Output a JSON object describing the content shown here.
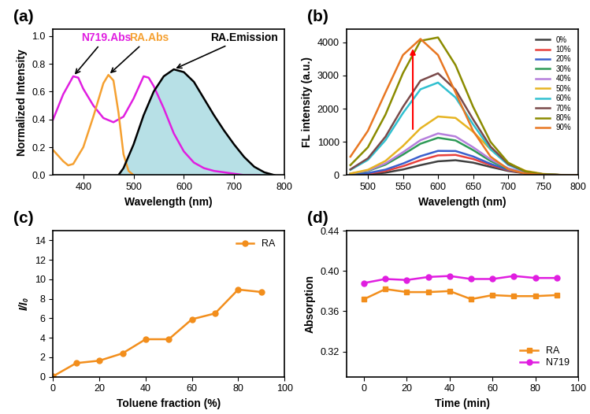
{
  "chart_data": [
    {
      "type": "line",
      "panel": "(a)",
      "x_label": "Wavelength (nm)",
      "y_label": "Normalized Intensity",
      "xlim": [
        340,
        800
      ],
      "xticks": [
        400,
        500,
        600,
        700,
        800
      ],
      "ylim": [
        0,
        1.05
      ],
      "yticks": [
        0.0,
        0.2,
        0.4,
        0.6,
        0.8,
        1.0
      ],
      "series": [
        {
          "name": "N719.Abs",
          "color": "#e01ee0",
          "line_style": "solid",
          "x": [
            340,
            360,
            380,
            390,
            400,
            420,
            440,
            460,
            480,
            500,
            520,
            530,
            540,
            560,
            580,
            600,
            620,
            640,
            660,
            680,
            700,
            720,
            750
          ],
          "values": [
            0.4,
            0.58,
            0.71,
            0.7,
            0.62,
            0.5,
            0.41,
            0.38,
            0.42,
            0.55,
            0.71,
            0.7,
            0.64,
            0.48,
            0.3,
            0.17,
            0.09,
            0.05,
            0.03,
            0.02,
            0.01,
            0.0,
            0.0
          ]
        },
        {
          "name": "RA.Abs",
          "color": "#f5a030",
          "line_style": "solid",
          "x": [
            340,
            360,
            370,
            380,
            400,
            420,
            440,
            450,
            460,
            470,
            480,
            490,
            500
          ],
          "values": [
            0.18,
            0.1,
            0.07,
            0.08,
            0.2,
            0.42,
            0.66,
            0.72,
            0.68,
            0.45,
            0.15,
            0.03,
            0.0
          ]
        },
        {
          "name": "RA.Emission",
          "color": "#000000",
          "type": "area",
          "line_style": "solid",
          "x": [
            470,
            480,
            500,
            520,
            540,
            560,
            580,
            600,
            620,
            640,
            660,
            680,
            700,
            720,
            740,
            760,
            780
          ],
          "values": [
            0.0,
            0.05,
            0.22,
            0.43,
            0.6,
            0.71,
            0.76,
            0.74,
            0.67,
            0.55,
            0.43,
            0.32,
            0.22,
            0.13,
            0.06,
            0.02,
            0.0
          ]
        }
      ]
    },
    {
      "type": "line",
      "panel": "(b)",
      "x_label": "Wavelength (nm)",
      "y_label": "FL intensity (a.u.)",
      "xlim": [
        470,
        800
      ],
      "xticks": [
        500,
        550,
        600,
        650,
        700,
        750,
        800
      ],
      "ylim": [
        0,
        4400
      ],
      "yticks": [
        0,
        1000,
        2000,
        3000,
        4000
      ],
      "legend": "upper right",
      "x": [
        475,
        500,
        525,
        550,
        575,
        600,
        625,
        650,
        675,
        700,
        725,
        750,
        775,
        800
      ],
      "series": [
        {
          "name": "0%",
          "color": "#404040",
          "values": [
            7,
            25,
            74,
            169,
            300,
            415,
            448,
            376,
            246,
            125,
            50,
            15,
            4,
            1
          ]
        },
        {
          "name": "10%",
          "color": "#e8413c",
          "values": [
            12,
            44,
            123,
            267,
            450,
            593,
            608,
            485,
            302,
            146,
            55,
            16,
            4,
            1
          ]
        },
        {
          "name": "20%",
          "color": "#3a5fcd",
          "values": [
            18,
            61,
            165,
            348,
            570,
            729,
            725,
            562,
            339,
            160,
            58,
            17,
            4,
            1
          ]
        },
        {
          "name": "30%",
          "color": "#2e9a57",
          "values": [
            38,
            124,
            314,
            617,
            944,
            1124,
            1043,
            754,
            424,
            185,
            63,
            17,
            3,
            0
          ]
        },
        {
          "name": "40%",
          "color": "#b57edc",
          "values": [
            43,
            139,
            350,
            688,
            1052,
            1254,
            1163,
            840,
            473,
            207,
            71,
            19,
            4,
            0
          ]
        },
        {
          "name": "50%",
          "color": "#e6b422",
          "values": [
            47,
            160,
            425,
            877,
            1409,
            1764,
            1721,
            1307,
            774,
            356,
            128,
            36,
            7,
            2
          ]
        },
        {
          "name": "60%",
          "color": "#30c0d0",
          "values": [
            157,
            459,
            1050,
            1868,
            2584,
            2786,
            2338,
            1529,
            778,
            308,
            95,
            22,
            4,
            0
          ]
        },
        {
          "name": "70%",
          "color": "#7a4a4a",
          "values": [
            172,
            505,
            1155,
            2054,
            2843,
            3065,
            2572,
            1682,
            856,
            339,
            105,
            25,
            5,
            0
          ]
        },
        {
          "name": "80%",
          "color": "#8b8b00",
          "values": [
            300,
            838,
            1819,
            3071,
            4044,
            4145,
            3312,
            2060,
            998,
            376,
            110,
            25,
            4,
            0
          ]
        },
        {
          "name": "90%",
          "color": "#e87722",
          "values": [
            554,
            1333,
            2489,
            3616,
            4100,
            3616,
            2489,
            1333,
            554,
            180,
            45,
            8,
            0,
            0
          ]
        }
      ]
    },
    {
      "type": "line",
      "panel": "(c)",
      "x_label": "Toluene fraction (%)",
      "y_label": "I/I₀",
      "xlim": [
        0,
        100
      ],
      "xticks": [
        0,
        20,
        40,
        60,
        80,
        100
      ],
      "ylim": [
        0,
        15
      ],
      "yticks": [
        0,
        2,
        4,
        6,
        8,
        10,
        12,
        14
      ],
      "legend": "upper right",
      "x": [
        0,
        10,
        20,
        30,
        40,
        50,
        60,
        70,
        80,
        90
      ],
      "series": [
        {
          "name": "RA",
          "color": "#f28e1c",
          "marker": "circle",
          "values": [
            0.05,
            1.4,
            1.65,
            2.4,
            3.85,
            3.85,
            5.9,
            6.5,
            8.95,
            8.7
          ]
        }
      ]
    },
    {
      "type": "line",
      "panel": "(d)",
      "x_label": "Time (min)",
      "y_label": "Absorption",
      "xlim": [
        -8,
        100
      ],
      "xticks": [
        0,
        20,
        40,
        60,
        80,
        100
      ],
      "ylim": [
        0.295,
        0.44
      ],
      "yticks": [
        0.32,
        0.36,
        {
          "value": 0.4,
          "label": "0.40"
        },
        0.44
      ],
      "legend": "lower right",
      "x": [
        0,
        10,
        20,
        30,
        40,
        50,
        60,
        70,
        80,
        90
      ],
      "series": [
        {
          "name": "RA",
          "color": "#f28e1c",
          "marker": "square",
          "values": [
            0.372,
            0.382,
            0.379,
            0.379,
            0.38,
            0.372,
            0.376,
            0.375,
            0.375,
            0.376
          ]
        },
        {
          "name": "N719",
          "color": "#e01ee0",
          "marker": "circle",
          "values": [
            0.388,
            0.392,
            0.391,
            0.394,
            0.395,
            0.392,
            0.392,
            0.395,
            0.393,
            0.393
          ]
        }
      ]
    }
  ]
}
